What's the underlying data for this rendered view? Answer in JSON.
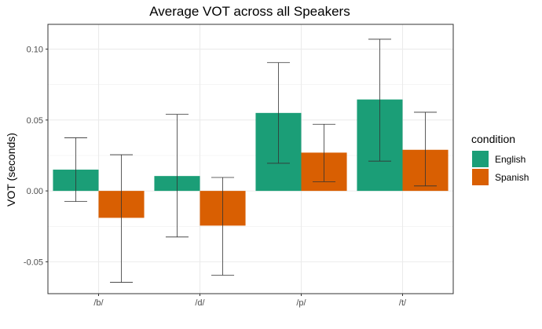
{
  "chart_data": {
    "type": "bar",
    "title": "Average VOT across all Speakers",
    "xlabel": "",
    "ylabel": "VOT (seconds)",
    "categories": [
      "/b/",
      "/d/",
      "/p/",
      "/t/"
    ],
    "series": [
      {
        "name": "English",
        "color": "#1b9e77",
        "values": [
          0.015,
          0.0105,
          0.055,
          0.0645
        ],
        "error_low": [
          -0.0075,
          -0.0325,
          0.0195,
          0.021
        ],
        "error_high": [
          0.0375,
          0.054,
          0.0905,
          0.107
        ]
      },
      {
        "name": "Spanish",
        "color": "#d95f02",
        "values": [
          -0.019,
          -0.0245,
          0.027,
          0.029
        ],
        "error_low": [
          -0.0645,
          -0.0595,
          0.0065,
          0.0035
        ],
        "error_high": [
          0.0255,
          0.0095,
          0.047,
          0.0555
        ]
      }
    ],
    "ylim": [
      -0.0725,
      0.1175
    ],
    "yticks": [
      -0.05,
      0.0,
      0.05,
      0.1
    ],
    "ytick_labels": [
      "-0.05",
      "0.00",
      "0.05",
      "0.10"
    ],
    "legend_title": "condition",
    "legend_position": "right",
    "grid": true,
    "error_bars": true
  }
}
